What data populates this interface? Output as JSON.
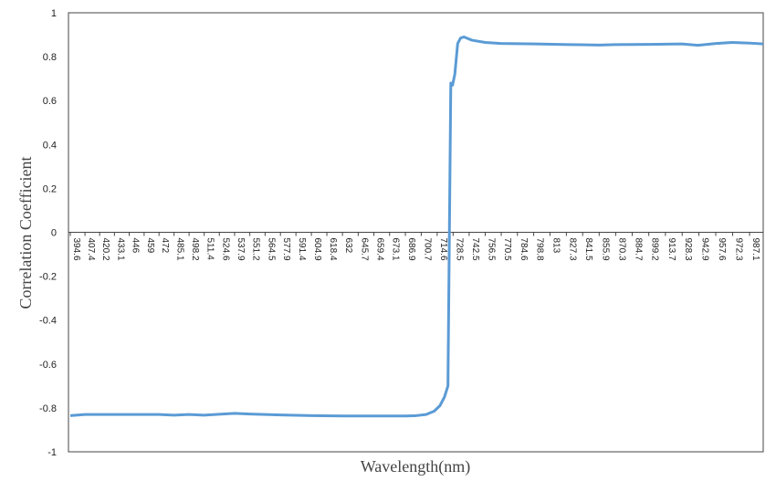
{
  "chart_data": {
    "type": "line",
    "x_label": "Wavelength(nm)",
    "y_label": "Correlation Coefficient",
    "x": [
      394.6,
      407.4,
      420,
      446,
      472,
      485,
      498,
      511,
      537.9,
      551,
      578,
      605,
      632,
      660,
      687,
      695,
      705,
      712,
      717,
      721,
      724,
      726.5,
      728,
      730,
      732.5,
      735,
      738,
      745,
      756.5,
      770,
      800,
      830,
      856,
      870,
      900,
      928,
      942,
      958,
      972,
      987,
      999
    ],
    "series": [
      {
        "color": "#5b9bd5",
        "values": [
          -0.835,
          -0.83,
          -0.83,
          -0.83,
          -0.83,
          -0.833,
          -0.83,
          -0.833,
          -0.825,
          -0.828,
          -0.832,
          -0.835,
          -0.837,
          -0.837,
          -0.837,
          -0.836,
          -0.83,
          -0.815,
          -0.79,
          -0.75,
          -0.7,
          0.68,
          0.67,
          0.72,
          0.86,
          0.885,
          0.89,
          0.875,
          0.865,
          0.86,
          0.858,
          0.855,
          0.853,
          0.855,
          0.856,
          0.858,
          0.852,
          0.86,
          0.865,
          0.862,
          0.858
        ]
      }
    ],
    "xlim": [
      394.6,
      999
    ],
    "xticks": [
      394.6,
      407.4,
      420.2,
      433.1,
      446,
      459,
      472,
      485.1,
      498.2,
      511.4,
      524.6,
      537.9,
      551.2,
      564.5,
      577.9,
      591.4,
      604.9,
      618.4,
      632,
      645.7,
      659.4,
      673.1,
      686.9,
      700.7,
      714.6,
      728.5,
      742.5,
      756.5,
      770.5,
      784.6,
      798.8,
      813,
      827.3,
      841.5,
      855.9,
      870.3,
      884.7,
      899.2,
      913.7,
      928.3,
      942.9,
      957.6,
      972.3,
      987.1
    ],
    "ylim": [
      -1,
      1
    ],
    "yticks": [
      -1,
      -0.8,
      -0.6,
      -0.4,
      -0.2,
      0,
      0.2,
      0.4,
      0.6,
      0.8,
      1
    ],
    "grid": false
  }
}
